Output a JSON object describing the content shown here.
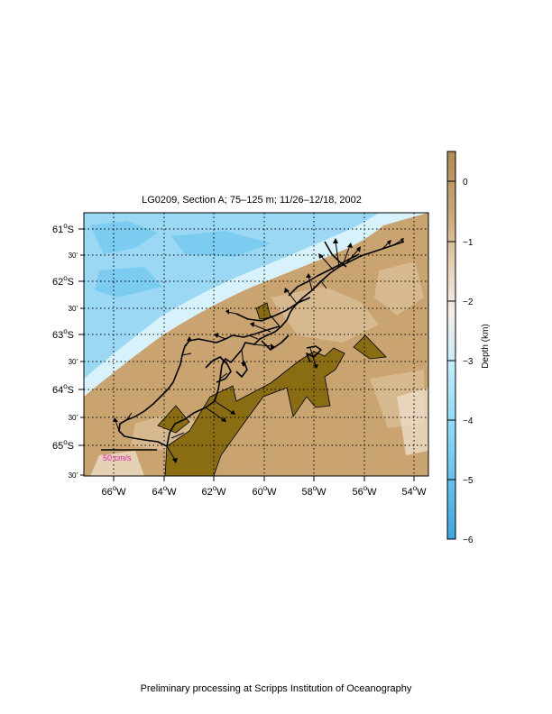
{
  "title": "LG0209, Section A; 75–125 m; 11/26–12/18, 2002",
  "footer": "Preliminary processing at Scripps Institution of Oceanography",
  "scale_label": "50 cm/s",
  "lat_labels": [
    {
      "deg": "61",
      "suffix": "S",
      "minor": false
    },
    {
      "deg": "30'",
      "suffix": "",
      "minor": true
    },
    {
      "deg": "62",
      "suffix": "S",
      "minor": false
    },
    {
      "deg": "30'",
      "suffix": "",
      "minor": true
    },
    {
      "deg": "63",
      "suffix": "S",
      "minor": false
    },
    {
      "deg": "30'",
      "suffix": "",
      "minor": true
    },
    {
      "deg": "64",
      "suffix": "S",
      "minor": false
    },
    {
      "deg": "30'",
      "suffix": "",
      "minor": true
    },
    {
      "deg": "65",
      "suffix": "S",
      "minor": false
    },
    {
      "deg": "30'",
      "suffix": "",
      "minor": true
    }
  ],
  "lon_labels": [
    "66",
    "64",
    "62",
    "60",
    "58",
    "56",
    "54"
  ],
  "lon_suffix": "W",
  "colorbar": {
    "label": "Depth (km)",
    "ticks": [
      "0",
      "−1",
      "−2",
      "−3",
      "−4",
      "−5",
      "−6"
    ],
    "colors": [
      "#b8925a",
      "#c9a878",
      "#e6cdb0",
      "#f3ece6",
      "#c8eefa",
      "#7fd6f5",
      "#3aaee6"
    ]
  },
  "colors": {
    "land": "#8a6d12",
    "shelf": "#c9a370",
    "deep": "#8fd3f3",
    "accent_scale": "#e81eb4"
  }
}
